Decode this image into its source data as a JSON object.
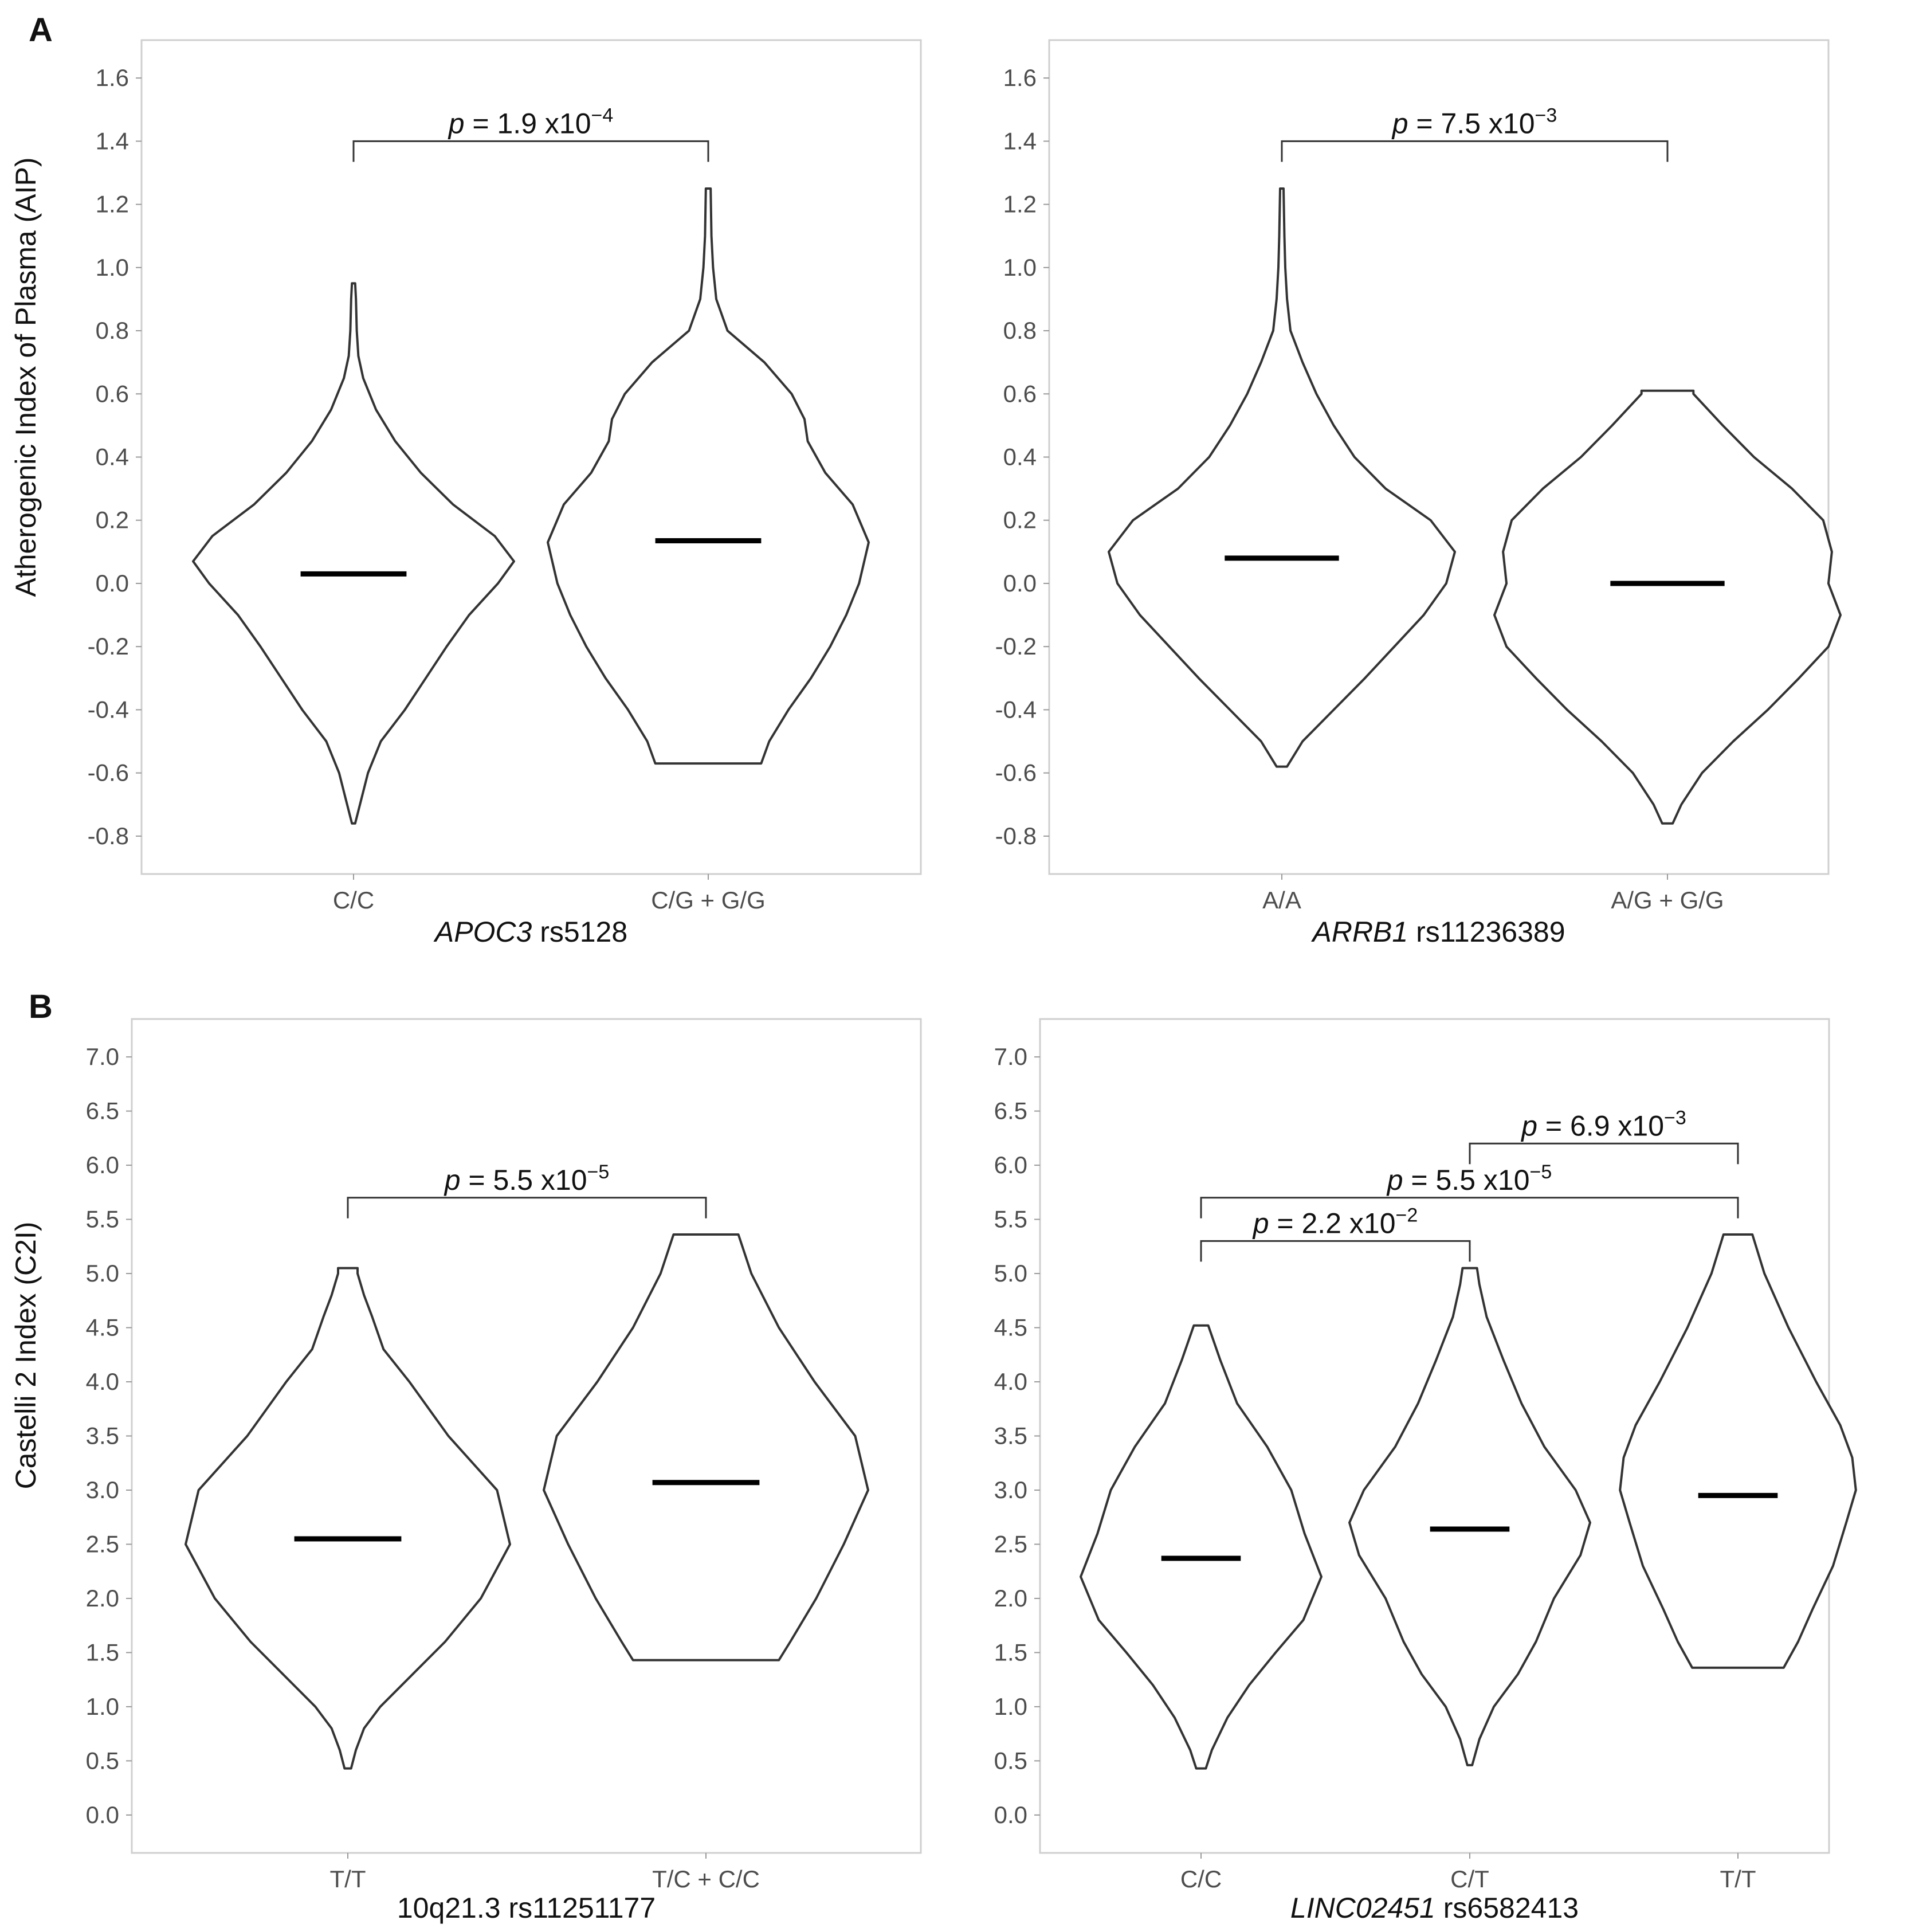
{
  "panel_labels": [
    "A",
    "B"
  ],
  "chart_data": [
    {
      "type": "violin",
      "panel": "A",
      "ylabel": "Atherogenic Index of Plasma (AIP)",
      "xlabel_italic": "APOC3",
      "xlabel_rest": " rs5128",
      "ylim": [
        -0.92,
        1.72
      ],
      "yticks": [
        -0.8,
        -0.6,
        -0.4,
        -0.2,
        0.0,
        0.2,
        0.4,
        0.6,
        0.8,
        1.0,
        1.2,
        1.4,
        1.6
      ],
      "ytick_labels": [
        "-0.8",
        "-0.6",
        "-0.4",
        "-0.2",
        "0.0",
        "0.2",
        "0.4",
        "0.6",
        "0.8",
        "1.0",
        "1.2",
        "1.4",
        "1.6"
      ],
      "categories": [
        "C/C",
        "C/G + G/G"
      ],
      "groups": [
        {
          "name": "C/C",
          "median": 0.03,
          "min": -0.76,
          "max": 0.95,
          "profile": [
            [
              -0.76,
              0.01
            ],
            [
              -0.7,
              0.04
            ],
            [
              -0.6,
              0.09
            ],
            [
              -0.5,
              0.17
            ],
            [
              -0.4,
              0.32
            ],
            [
              -0.3,
              0.45
            ],
            [
              -0.2,
              0.58
            ],
            [
              -0.1,
              0.72
            ],
            [
              0.0,
              0.9
            ],
            [
              0.07,
              1.0
            ],
            [
              0.15,
              0.88
            ],
            [
              0.25,
              0.62
            ],
            [
              0.35,
              0.42
            ],
            [
              0.45,
              0.26
            ],
            [
              0.55,
              0.14
            ],
            [
              0.65,
              0.06
            ],
            [
              0.72,
              0.03
            ],
            [
              0.8,
              0.02
            ],
            [
              0.9,
              0.015
            ],
            [
              0.95,
              0.01
            ]
          ]
        },
        {
          "name": "C/G + G/G",
          "median": 0.135,
          "min": -0.57,
          "max": 1.25,
          "profile": [
            [
              -0.57,
              0.33
            ],
            [
              -0.5,
              0.38
            ],
            [
              -0.4,
              0.5
            ],
            [
              -0.3,
              0.64
            ],
            [
              -0.2,
              0.76
            ],
            [
              -0.1,
              0.86
            ],
            [
              0.0,
              0.94
            ],
            [
              0.13,
              1.0
            ],
            [
              0.25,
              0.9
            ],
            [
              0.35,
              0.73
            ],
            [
              0.45,
              0.62
            ],
            [
              0.52,
              0.6
            ],
            [
              0.6,
              0.52
            ],
            [
              0.7,
              0.35
            ],
            [
              0.8,
              0.12
            ],
            [
              0.9,
              0.05
            ],
            [
              1.0,
              0.03
            ],
            [
              1.1,
              0.02
            ],
            [
              1.25,
              0.015
            ]
          ]
        }
      ],
      "comparisons": [
        {
          "from": 0,
          "to": 1,
          "y": 1.4,
          "p_symbol": "p",
          "p_text": " = 1.9 x10",
          "p_exp": "−4"
        }
      ]
    },
    {
      "type": "violin",
      "panel": "A",
      "ylabel": "",
      "xlabel_italic": "ARRB1",
      "xlabel_rest": " rs11236389",
      "ylim": [
        -0.92,
        1.72
      ],
      "yticks": [
        -0.8,
        -0.6,
        -0.4,
        -0.2,
        0.0,
        0.2,
        0.4,
        0.6,
        0.8,
        1.0,
        1.2,
        1.4,
        1.6
      ],
      "ytick_labels": [
        "-0.8",
        "-0.6",
        "-0.4",
        "-0.2",
        "0.0",
        "0.2",
        "0.4",
        "0.6",
        "0.8",
        "1.0",
        "1.2",
        "1.4",
        "1.6"
      ],
      "categories": [
        "A/A",
        "A/G + G/G"
      ],
      "groups": [
        {
          "name": "A/A",
          "median": 0.08,
          "min": -0.58,
          "max": 1.25,
          "profile": [
            [
              -0.58,
              0.03
            ],
            [
              -0.5,
              0.12
            ],
            [
              -0.4,
              0.3
            ],
            [
              -0.3,
              0.48
            ],
            [
              -0.2,
              0.65
            ],
            [
              -0.1,
              0.82
            ],
            [
              0.0,
              0.95
            ],
            [
              0.1,
              1.0
            ],
            [
              0.2,
              0.86
            ],
            [
              0.3,
              0.6
            ],
            [
              0.4,
              0.42
            ],
            [
              0.5,
              0.3
            ],
            [
              0.6,
              0.2
            ],
            [
              0.7,
              0.12
            ],
            [
              0.8,
              0.05
            ],
            [
              0.9,
              0.03
            ],
            [
              1.0,
              0.02
            ],
            [
              1.1,
              0.015
            ],
            [
              1.25,
              0.01
            ]
          ]
        },
        {
          "name": "A/G + G/G",
          "median": 0.0,
          "min": -0.76,
          "max": 0.61,
          "profile": [
            [
              -0.76,
              0.03
            ],
            [
              -0.7,
              0.08
            ],
            [
              -0.6,
              0.2
            ],
            [
              -0.5,
              0.38
            ],
            [
              -0.4,
              0.58
            ],
            [
              -0.3,
              0.76
            ],
            [
              -0.2,
              0.93
            ],
            [
              -0.1,
              1.0
            ],
            [
              0.0,
              0.93
            ],
            [
              0.1,
              0.95
            ],
            [
              0.2,
              0.9
            ],
            [
              0.3,
              0.72
            ],
            [
              0.4,
              0.5
            ],
            [
              0.5,
              0.32
            ],
            [
              0.6,
              0.15
            ],
            [
              0.61,
              0.15
            ]
          ]
        }
      ],
      "comparisons": [
        {
          "from": 0,
          "to": 1,
          "y": 1.4,
          "p_symbol": "p",
          "p_text": " = 7.5 x10",
          "p_exp": "−3"
        }
      ]
    },
    {
      "type": "violin",
      "panel": "B",
      "ylabel": "Castelli 2 Index (C2I)",
      "xlabel_italic": "",
      "xlabel_rest": "10q21.3 rs11251177",
      "ylim": [
        -0.35,
        7.35
      ],
      "yticks": [
        0.0,
        0.5,
        1.0,
        1.5,
        2.0,
        2.5,
        3.0,
        3.5,
        4.0,
        4.5,
        5.0,
        5.5,
        6.0,
        6.5,
        7.0
      ],
      "ytick_labels": [
        "0.0",
        "0.5",
        "1.0",
        "1.5",
        "2.0",
        "2.5",
        "3.0",
        "3.5",
        "4.0",
        "4.5",
        "5.0",
        "5.5",
        "6.0",
        "6.5",
        "7.0"
      ],
      "categories": [
        "T/T",
        "T/C + C/C"
      ],
      "groups": [
        {
          "name": "T/T",
          "median": 2.55,
          "min": 0.43,
          "max": 5.05,
          "profile": [
            [
              0.43,
              0.02
            ],
            [
              0.6,
              0.05
            ],
            [
              0.8,
              0.1
            ],
            [
              1.0,
              0.2
            ],
            [
              1.3,
              0.4
            ],
            [
              1.6,
              0.6
            ],
            [
              2.0,
              0.82
            ],
            [
              2.5,
              1.0
            ],
            [
              3.0,
              0.92
            ],
            [
              3.5,
              0.62
            ],
            [
              4.0,
              0.38
            ],
            [
              4.3,
              0.22
            ],
            [
              4.6,
              0.15
            ],
            [
              4.8,
              0.1
            ],
            [
              5.0,
              0.06
            ],
            [
              5.05,
              0.06
            ]
          ]
        },
        {
          "name": "T/C + C/C",
          "median": 3.07,
          "min": 1.43,
          "max": 5.36,
          "profile": [
            [
              1.43,
              0.45
            ],
            [
              1.6,
              0.52
            ],
            [
              2.0,
              0.68
            ],
            [
              2.5,
              0.85
            ],
            [
              3.0,
              1.0
            ],
            [
              3.5,
              0.92
            ],
            [
              4.0,
              0.67
            ],
            [
              4.5,
              0.45
            ],
            [
              5.0,
              0.28
            ],
            [
              5.36,
              0.2
            ]
          ]
        }
      ],
      "comparisons": [
        {
          "from": 0,
          "to": 1,
          "y": 5.7,
          "p_symbol": "p",
          "p_text": " = 5.5 x10",
          "p_exp": "−5"
        }
      ]
    },
    {
      "type": "violin",
      "panel": "B",
      "ylabel": "",
      "xlabel_italic": "LINC02451",
      "xlabel_rest": " rs6582413",
      "ylim": [
        -0.35,
        7.35
      ],
      "yticks": [
        0.0,
        0.5,
        1.0,
        1.5,
        2.0,
        2.5,
        3.0,
        3.5,
        4.0,
        4.5,
        5.0,
        5.5,
        6.0,
        6.5,
        7.0
      ],
      "ytick_labels": [
        "0.0",
        "0.5",
        "1.0",
        "1.5",
        "2.0",
        "2.5",
        "3.0",
        "3.5",
        "4.0",
        "4.5",
        "5.0",
        "5.5",
        "6.0",
        "6.5",
        "7.0"
      ],
      "categories": [
        "C/C",
        "C/T",
        "T/T"
      ],
      "groups": [
        {
          "name": "C/C",
          "median": 2.37,
          "min": 0.43,
          "max": 4.52,
          "profile": [
            [
              0.43,
              0.04
            ],
            [
              0.6,
              0.09
            ],
            [
              0.9,
              0.22
            ],
            [
              1.2,
              0.4
            ],
            [
              1.5,
              0.62
            ],
            [
              1.8,
              0.85
            ],
            [
              2.2,
              1.0
            ],
            [
              2.6,
              0.86
            ],
            [
              3.0,
              0.75
            ],
            [
              3.4,
              0.55
            ],
            [
              3.8,
              0.3
            ],
            [
              4.2,
              0.16
            ],
            [
              4.52,
              0.06
            ]
          ]
        },
        {
          "name": "C/T",
          "median": 2.64,
          "min": 0.46,
          "max": 5.05,
          "profile": [
            [
              0.46,
              0.02
            ],
            [
              0.7,
              0.08
            ],
            [
              1.0,
              0.2
            ],
            [
              1.3,
              0.4
            ],
            [
              1.6,
              0.55
            ],
            [
              2.0,
              0.7
            ],
            [
              2.4,
              0.92
            ],
            [
              2.7,
              1.0
            ],
            [
              3.0,
              0.88
            ],
            [
              3.4,
              0.62
            ],
            [
              3.8,
              0.43
            ],
            [
              4.2,
              0.28
            ],
            [
              4.6,
              0.14
            ],
            [
              4.9,
              0.08
            ],
            [
              5.05,
              0.06
            ]
          ]
        },
        {
          "name": "T/T",
          "median": 2.95,
          "min": 1.36,
          "max": 5.36,
          "profile": [
            [
              1.36,
              0.38
            ],
            [
              1.6,
              0.5
            ],
            [
              1.9,
              0.62
            ],
            [
              2.3,
              0.79
            ],
            [
              2.7,
              0.9
            ],
            [
              3.0,
              0.98
            ],
            [
              3.3,
              0.95
            ],
            [
              3.6,
              0.85
            ],
            [
              4.0,
              0.65
            ],
            [
              4.5,
              0.42
            ],
            [
              5.0,
              0.22
            ],
            [
              5.36,
              0.12
            ]
          ]
        }
      ],
      "comparisons": [
        {
          "from": 0,
          "to": 1,
          "y": 5.3,
          "p_symbol": "p",
          "p_text": " = 2.2 x10",
          "p_exp": "−2"
        },
        {
          "from": 0,
          "to": 2,
          "y": 5.7,
          "p_symbol": "p",
          "p_text": " = 5.5 x10",
          "p_exp": "−5"
        },
        {
          "from": 1,
          "to": 2,
          "y": 6.2,
          "p_symbol": "p",
          "p_text": " = 6.9 x10",
          "p_exp": "−3"
        }
      ]
    }
  ]
}
